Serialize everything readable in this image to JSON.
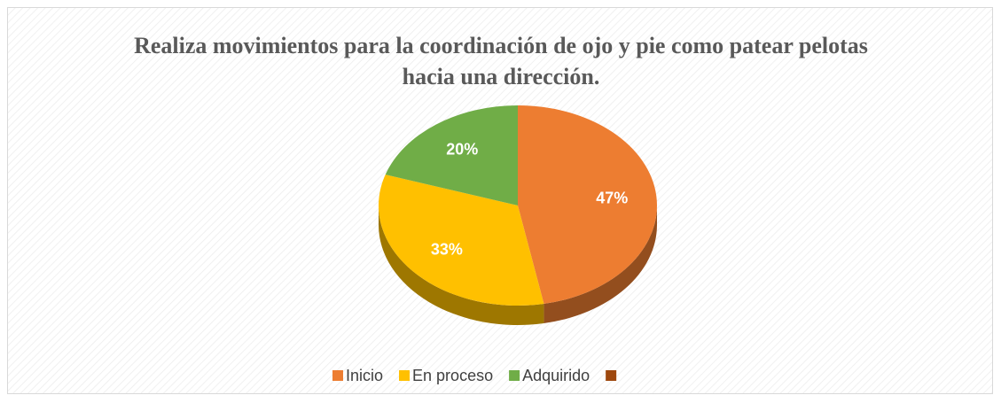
{
  "chart_data": {
    "type": "pie",
    "title": "Realiza movimientos para la coordinación de ojo y pie como patear pelotas hacia una dirección.",
    "categories": [
      "Inicio",
      "En proceso",
      "Adquirido",
      null
    ],
    "values": [
      47,
      33,
      20,
      0
    ],
    "value_labels": [
      "47%",
      "33%",
      "20%",
      null
    ],
    "colors": [
      "#ed7d31",
      "#ffc000",
      "#70ad47",
      "#9e480e"
    ],
    "legend": "bottom"
  }
}
